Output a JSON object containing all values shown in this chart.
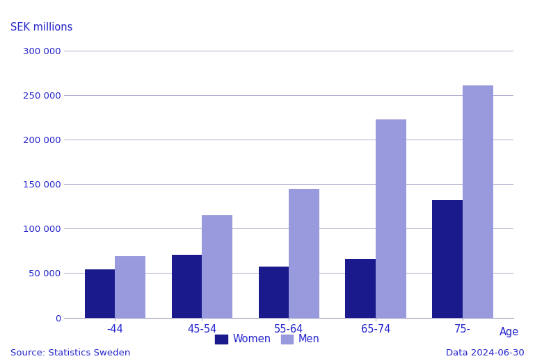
{
  "categories": [
    "-44",
    "45-54",
    "55-64",
    "65-74",
    "75-"
  ],
  "women_values": [
    54000,
    71000,
    57000,
    66000,
    132000
  ],
  "men_values": [
    69000,
    115000,
    145000,
    223000,
    261000
  ],
  "women_color": "#1a1a8c",
  "men_color": "#9999dd",
  "ylabel": "SEK millions",
  "xlabel": "Age",
  "ylim": [
    0,
    300000
  ],
  "yticks": [
    0,
    50000,
    100000,
    150000,
    200000,
    250000,
    300000
  ],
  "ytick_labels": [
    "0",
    "50 000",
    "100 000",
    "150 000",
    "200 000",
    "250 000",
    "300 000"
  ],
  "source_text": "Source: Statistics Sweden",
  "date_text": "Data 2024-06-30",
  "legend_women": "Women",
  "legend_men": "Men",
  "text_color": "#2222cc",
  "background_color": "#ffffff",
  "grid_color": "#aaaacc"
}
